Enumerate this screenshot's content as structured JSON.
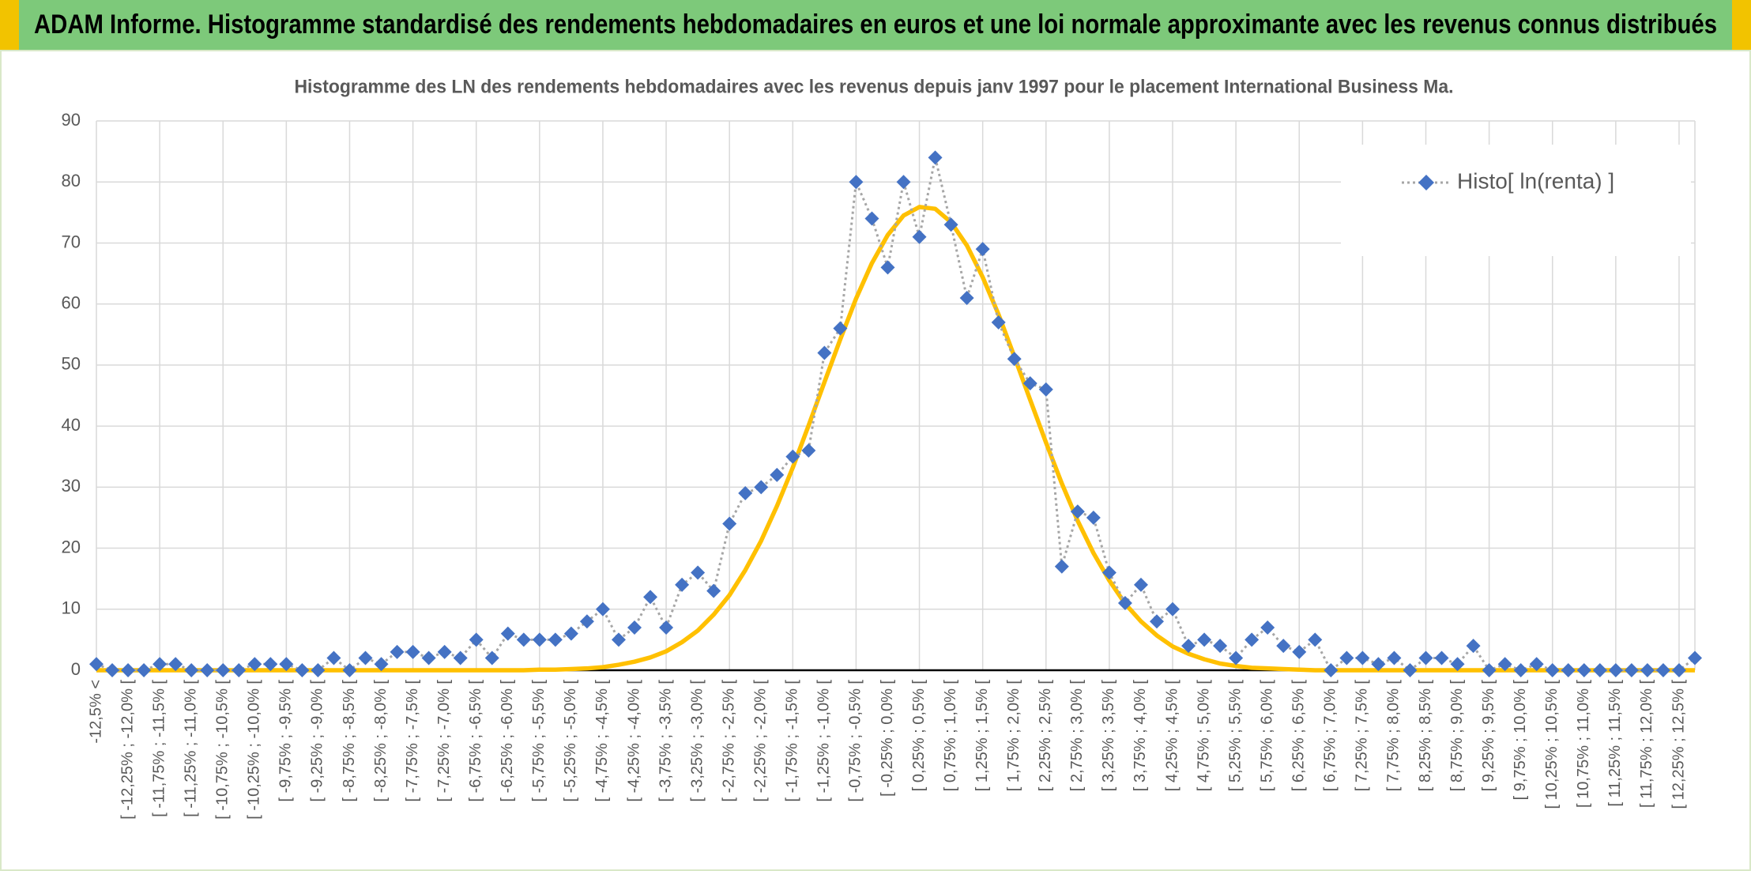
{
  "banner": {
    "title": "ADAM Informe. Histogramme standardisé des rendements hebdomadaires en euros et une loi normale approximante avec les revenus connus distribués"
  },
  "chart_data": {
    "type": "line",
    "title": "Histogramme des LN des rendements hebdomadaires avec les revenus depuis janv 1997 pour le placement International Business Ma.",
    "categories": [
      "-12,5% <",
      null,
      "[ -12,25% ; -12,0% [",
      null,
      "[ -11,75% ; -11,5% [",
      null,
      "[ -11,25% ; -11,0% [",
      null,
      "[ -10,75% ; -10,5% [",
      null,
      "[ -10,25% ; -10,0% [",
      null,
      "[ -9,75% ; -9,5% [",
      null,
      "[ -9,25% ; -9,0% [",
      null,
      "[ -8,75% ; -8,5% [",
      null,
      "[ -8,25% ; -8,0% [",
      null,
      "[ -7,75% ; -7,5% [",
      null,
      "[ -7,25% ; -7,0% [",
      null,
      "[ -6,75% ; -6,5% [",
      null,
      "[ -6,25% ; -6,0% [",
      null,
      "[ -5,75% ; -5,5% [",
      null,
      "[ -5,25% ; -5,0% [",
      null,
      "[ -4,75% ; -4,5% [",
      null,
      "[ -4,25% ; -4,0% [",
      null,
      "[ -3,75% ; -3,5% [",
      null,
      "[ -3,25% ; -3,0% [",
      null,
      "[ -2,75% ; -2,5% [",
      null,
      "[ -2,25% ; -2,0% [",
      null,
      "[ -1,75% ; -1,5% [",
      null,
      "[ -1,25% ; -1,0% [",
      null,
      "[ -0,75% ; -0,5% [",
      null,
      "[ -0,25% ; 0,0% [",
      null,
      "[ 0,25% ; 0,5% [",
      null,
      "[ 0,75% ; 1,0% [",
      null,
      "[ 1,25% ; 1,5% [",
      null,
      "[ 1,75% ; 2,0% [",
      null,
      "[ 2,25% ; 2,5% [",
      null,
      "[ 2,75% ; 3,0% [",
      null,
      "[ 3,25% ; 3,5% [",
      null,
      "[ 3,75% ; 4,0% [",
      null,
      "[ 4,25% ; 4,5% [",
      null,
      "[ 4,75% ; 5,0% [",
      null,
      "[ 5,25% ; 5,5% [",
      null,
      "[ 5,75% ; 6,0% [",
      null,
      "[ 6,25% ; 6,5% [",
      null,
      "[ 6,75% ; 7,0% [",
      null,
      "[ 7,25% ; 7,5% [",
      null,
      "[ 7,75% ; 8,0% [",
      null,
      "[ 8,25% ; 8,5% [",
      null,
      "[ 8,75% ; 9,0% [",
      null,
      "[ 9,25% ; 9,5% [",
      null,
      "[ 9,75% ; 10,0% [",
      null,
      "[ 10,25% ; 10,5% [",
      null,
      "[ 10,75% ; 11,0% [",
      null,
      "[ 11,25% ; 11,5% [",
      null,
      "[ 11,75% ; 12,0% [",
      null,
      "[ 12,25% ; 12,5% [",
      null
    ],
    "series": [
      {
        "name": "Histo[ ln(renta) ]",
        "color": "#4472c4",
        "line_color": "#a6a6a6",
        "values": [
          1,
          0,
          0,
          0,
          1,
          1,
          0,
          0,
          0,
          0,
          1,
          1,
          1,
          0,
          0,
          2,
          0,
          2,
          1,
          3,
          3,
          2,
          3,
          2,
          5,
          2,
          6,
          5,
          5,
          5,
          6,
          8,
          10,
          5,
          7,
          12,
          7,
          14,
          16,
          13,
          24,
          29,
          30,
          32,
          35,
          36,
          52,
          56,
          80,
          74,
          66,
          80,
          71,
          84,
          73,
          61,
          69,
          57,
          51,
          47,
          46,
          17,
          26,
          25,
          16,
          11,
          14,
          8,
          10,
          4,
          5,
          4,
          2,
          5,
          7,
          4,
          3,
          5,
          0,
          2,
          2,
          1,
          2,
          0,
          2,
          2,
          1,
          4,
          0,
          1,
          0,
          1,
          0,
          0,
          0,
          0,
          0,
          0,
          0,
          0,
          0,
          2
        ]
      },
      {
        "color": "#ffc000",
        "values": [
          0,
          0,
          0,
          0,
          0,
          0,
          0,
          0,
          0,
          0,
          0,
          0,
          0,
          0,
          0,
          0,
          0,
          0,
          0,
          0,
          0,
          0,
          0,
          0,
          0,
          0,
          0,
          0,
          0.1,
          0.1,
          0.2,
          0.3,
          0.5,
          0.9,
          1.4,
          2.1,
          3.1,
          4.6,
          6.5,
          9.1,
          12.3,
          16.4,
          21.2,
          26.9,
          33.2,
          40.1,
          47.2,
          54.2,
          60.9,
          66.7,
          71.3,
          74.5,
          75.9,
          75.6,
          73.4,
          69.6,
          64.4,
          58.3,
          51.4,
          44.3,
          37.3,
          30.6,
          24.5,
          19.2,
          14.7,
          10.9,
          8.0,
          5.7,
          3.9,
          2.7,
          1.8,
          1.1,
          0.7,
          0.4,
          0.3,
          0.2,
          0.1,
          0,
          0,
          0,
          0,
          0,
          0,
          0,
          0,
          0,
          0,
          0,
          0,
          0,
          0,
          0,
          0,
          0,
          0,
          0,
          0,
          0,
          0,
          0,
          0,
          0
        ]
      }
    ],
    "ylim": [
      0,
      90
    ],
    "yticks": [
      0,
      10,
      20,
      30,
      40,
      50,
      60,
      70,
      80,
      90
    ],
    "grid": true,
    "legend": "upper right"
  }
}
